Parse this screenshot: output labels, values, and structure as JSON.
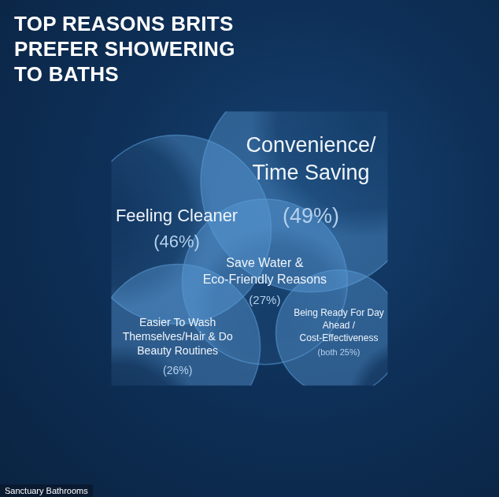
{
  "chart_data": {
    "type": "bubble",
    "title": "TOP REASONS BRITS PREFER SHOWERING TO BATHS",
    "categories": [
      "Convenience/ Time Saving",
      "Feeling Cleaner",
      "Save Water & Eco-Friendly Reasons",
      "Easier To Wash Themselves/Hair & Do Beauty Routines",
      "Being Ready For Day Ahead / Cost-Effectiveness"
    ],
    "values": [
      49,
      46,
      27,
      26,
      25
    ],
    "value_labels": [
      "(49%)",
      "(46%)",
      "(27%)",
      "(26%)",
      "(both 25%)"
    ],
    "data_labels": true,
    "tick_labels": false,
    "grid": false,
    "legend": false,
    "color": "#5a9ad6"
  },
  "source": "Sanctuary Bathrooms"
}
